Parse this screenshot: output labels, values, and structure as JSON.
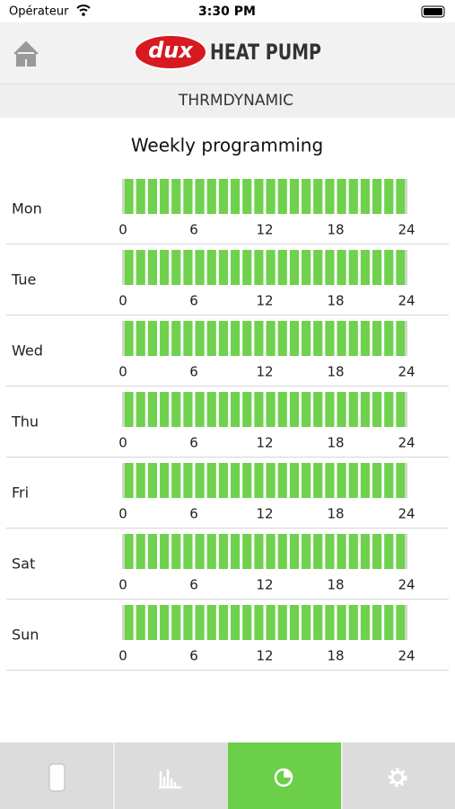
{
  "status_bar": {
    "carrier": "Opérateur",
    "time": "3:30 PM"
  },
  "header": {
    "brand": "dux",
    "product": "HEAT PUMP"
  },
  "subheader": "THRMDYNAMIC",
  "title": "Weekly programming",
  "days": [
    "Mon",
    "Tue",
    "Wed",
    "Thu",
    "Fri",
    "Sat",
    "Sun"
  ],
  "hour_ticks": [
    0,
    6,
    12,
    18,
    24
  ]
}
